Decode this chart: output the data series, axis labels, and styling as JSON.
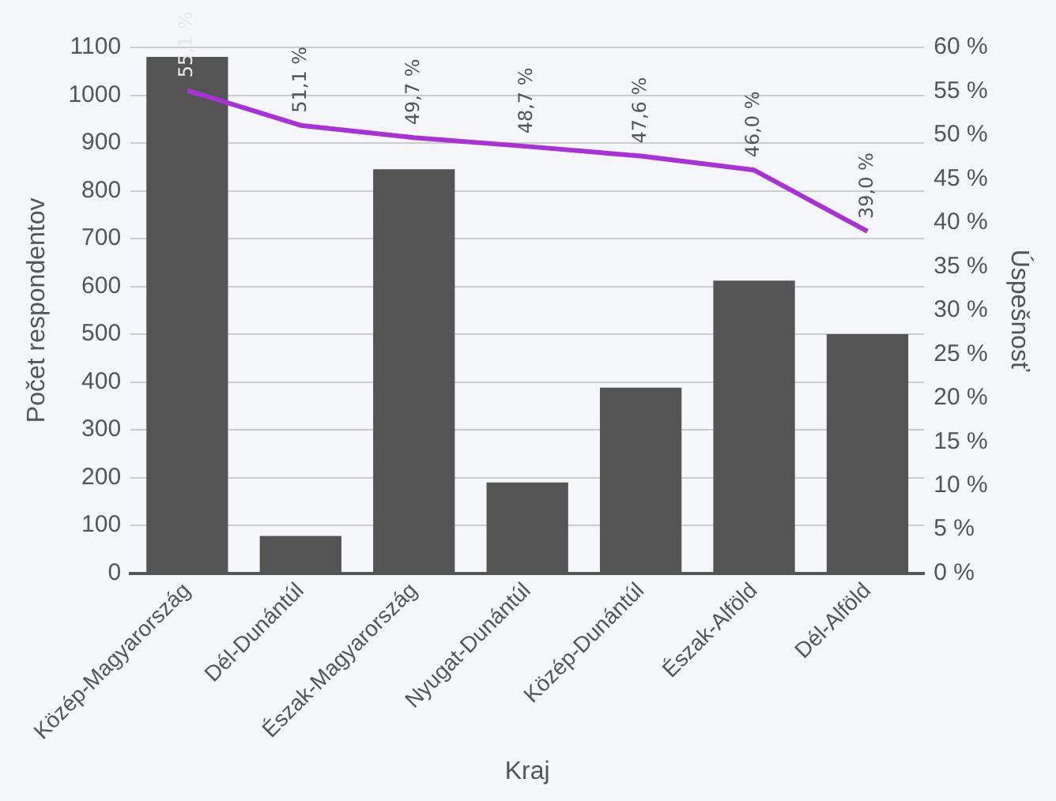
{
  "chart_data": {
    "type": "bar",
    "xlabel": "Kraj",
    "ylabel": "Počet respondentov",
    "y2label": "Úspešnosť",
    "categories": [
      "Közép-Magyarország",
      "Dél-Dunántúl",
      "Észak-Magyarország",
      "Nyugat-Dunántúl",
      "Közép-Dunántúl",
      "Észak-Alföld",
      "Dél-Alföld"
    ],
    "series": [
      {
        "color": "#545454",
        "values": [
          1080,
          78,
          845,
          190,
          388,
          612,
          500
        ]
      },
      {
        "type": "line",
        "axis": "y2",
        "color": "#a832d6",
        "values": [
          55.1,
          51.1,
          49.7,
          48.7,
          47.6,
          46.0,
          39.0
        ],
        "value_labels": [
          "55,1 %",
          "51,1 %",
          "49,7 %",
          "48,7 %",
          "47,6 %",
          "46,0 %",
          "39,0 %"
        ]
      }
    ],
    "ylim": [
      0,
      1100
    ],
    "yticks": [
      0,
      100,
      200,
      300,
      400,
      500,
      600,
      700,
      800,
      900,
      1000,
      1100
    ],
    "y2lim": [
      0,
      60
    ],
    "y2ticks": [
      {
        "value": 0,
        "label": "0 %"
      },
      {
        "value": 5,
        "label": "5 %"
      },
      {
        "value": 10,
        "label": "10 %"
      },
      {
        "value": 15,
        "label": "15 %"
      },
      {
        "value": 20,
        "label": "20 %"
      },
      {
        "value": 25,
        "label": "25 %"
      },
      {
        "value": 30,
        "label": "30 %"
      },
      {
        "value": 35,
        "label": "35 %"
      },
      {
        "value": 40,
        "label": "40 %"
      },
      {
        "value": 45,
        "label": "45 %"
      },
      {
        "value": 50,
        "label": "50 %"
      },
      {
        "value": 55,
        "label": "55 %"
      },
      {
        "value": 60,
        "label": "60 %"
      }
    ],
    "grid": "y",
    "marker": "none",
    "line_style": "solid"
  }
}
